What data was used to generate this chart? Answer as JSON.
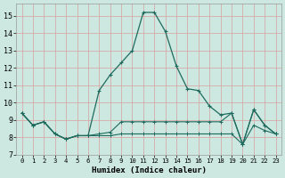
{
  "xlabel": "Humidex (Indice chaleur)",
  "xlim": [
    -0.5,
    23.5
  ],
  "ylim": [
    7,
    15.7
  ],
  "yticks": [
    7,
    8,
    9,
    10,
    11,
    12,
    13,
    14,
    15
  ],
  "xticks": [
    0,
    1,
    2,
    3,
    4,
    5,
    6,
    7,
    8,
    9,
    10,
    11,
    12,
    13,
    14,
    15,
    16,
    17,
    18,
    19,
    20,
    21,
    22,
    23
  ],
  "bg_color": "#cce8e0",
  "grid_color": "#b5d5cc",
  "line_color": "#1e6b5e",
  "line1_x": [
    0,
    1,
    2,
    3,
    4,
    5,
    6,
    7,
    8,
    9,
    10,
    11,
    12,
    13,
    14,
    15,
    16,
    17,
    18,
    19,
    20,
    21,
    22,
    23
  ],
  "line1_y": [
    9.4,
    8.7,
    8.9,
    8.2,
    7.9,
    8.1,
    8.1,
    10.7,
    11.6,
    12.3,
    13.0,
    15.2,
    15.2,
    14.1,
    12.1,
    10.8,
    10.7,
    9.8,
    9.3,
    9.4,
    7.6,
    9.6,
    8.7,
    8.2
  ],
  "line2_x": [
    0,
    1,
    2,
    3,
    4,
    5,
    6,
    7,
    8,
    9,
    10,
    11,
    12,
    13,
    14,
    15,
    16,
    17,
    18,
    19,
    20,
    21,
    22,
    23
  ],
  "line2_y": [
    9.4,
    8.7,
    8.9,
    8.2,
    7.9,
    8.1,
    8.1,
    8.2,
    8.3,
    8.9,
    8.9,
    8.9,
    8.9,
    8.9,
    8.9,
    8.9,
    8.9,
    8.9,
    8.9,
    9.4,
    7.6,
    9.6,
    8.7,
    8.2
  ],
  "line3_x": [
    0,
    1,
    2,
    3,
    4,
    5,
    6,
    7,
    8,
    9,
    10,
    11,
    12,
    13,
    14,
    15,
    16,
    17,
    18,
    19,
    20,
    21,
    22,
    23
  ],
  "line3_y": [
    9.4,
    8.7,
    8.9,
    8.2,
    7.9,
    8.1,
    8.1,
    8.1,
    8.1,
    8.2,
    8.2,
    8.2,
    8.2,
    8.2,
    8.2,
    8.2,
    8.2,
    8.2,
    8.2,
    8.2,
    7.6,
    8.7,
    8.4,
    8.2
  ]
}
